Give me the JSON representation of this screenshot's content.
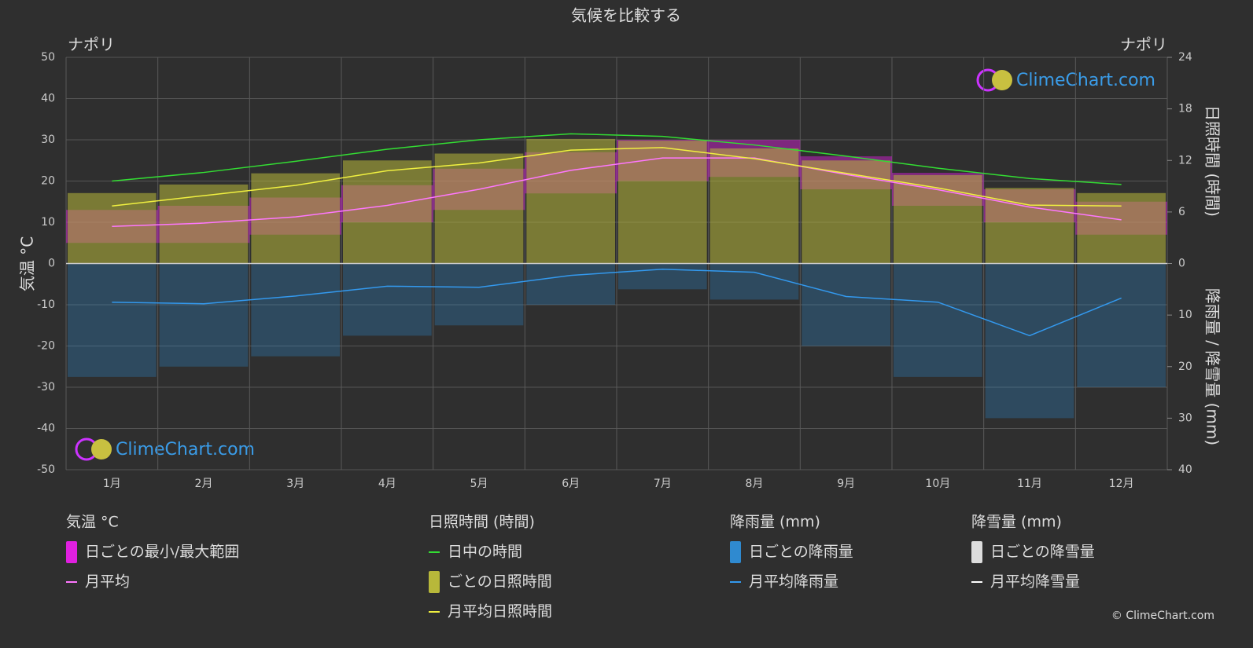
{
  "chart_data": {
    "type": "climate",
    "title": "気候を比較する",
    "locations": [
      "ナポリ",
      "ナポリ"
    ],
    "watermark": "ClimeChart.com",
    "copyright": "© ClimeChart.com",
    "ylabel": "気温 °C",
    "y2label": "日照時間 (時間)",
    "y3label": "降雨量 / 降雪量 (mm)",
    "categories": [
      "1月",
      "2月",
      "3月",
      "4月",
      "5月",
      "6月",
      "7月",
      "8月",
      "9月",
      "10月",
      "11月",
      "12月"
    ],
    "ylim": [
      -50,
      50
    ],
    "yticks": [
      -50,
      -40,
      -30,
      -20,
      -10,
      0,
      10,
      20,
      30,
      40,
      50
    ],
    "y2lim": [
      0,
      24
    ],
    "y2ticks": [
      0,
      6,
      12,
      18,
      24
    ],
    "y3lim": [
      0,
      40
    ],
    "y3ticks": [
      10,
      20,
      30,
      40
    ],
    "grid": true,
    "groups": [
      {
        "title": "気温 °C",
        "series": [
          {
            "name": "日ごとの最小/最大範囲",
            "kind": "range",
            "axis": "y",
            "color": "#e020e0",
            "low": [
              5,
              5,
              7,
              10,
              13,
              17,
              20,
              21,
              18,
              14,
              10,
              7
            ],
            "high": [
              13,
              14,
              16,
              19,
              23,
              27,
              30,
              30,
              26,
              22,
              18,
              15
            ]
          },
          {
            "name": "月平均",
            "kind": "line",
            "axis": "y",
            "color": "#ff77ff",
            "values": [
              9,
              9.8,
              11.3,
              14.1,
              18,
              22.6,
              25.6,
              25.6,
              21.6,
              17.9,
              13.7,
              10.6
            ]
          }
        ]
      },
      {
        "title": "日照時間 (時間)",
        "series": [
          {
            "name": "日中の時間",
            "kind": "line",
            "axis": "y2",
            "color": "#33dd33",
            "values": [
              9.6,
              10.6,
              11.9,
              13.3,
              14.4,
              15.1,
              14.8,
              13.8,
              12.5,
              11.1,
              9.9,
              9.2
            ]
          },
          {
            "name": "ごとの日照時間",
            "kind": "bar",
            "axis": "y2",
            "color": "#b8b83a",
            "values": [
              8.2,
              9.2,
              10.5,
              12,
              12.8,
              14.5,
              14.3,
              13.4,
              12,
              10.3,
              8.8,
              8.2
            ]
          },
          {
            "name": "月平均日照時間",
            "kind": "line",
            "axis": "y2",
            "color": "#f0f040",
            "values": [
              6.7,
              7.9,
              9.1,
              10.8,
              11.7,
              13.2,
              13.5,
              12.2,
              10.5,
              8.8,
              6.8,
              6.7
            ]
          }
        ]
      },
      {
        "title": "降雨量 (mm)",
        "series": [
          {
            "name": "日ごとの降雨量",
            "kind": "bar",
            "axis": "y3",
            "color": "#2f8ad0",
            "values": [
              22,
              20,
              18,
              14,
              12,
              8,
              5,
              7,
              16,
              22,
              30,
              24
            ]
          },
          {
            "name": "月平均降雨量",
            "kind": "line",
            "axis": "y3",
            "color": "#3399ee",
            "values": [
              7.5,
              7.8,
              6.3,
              4.4,
              4.6,
              2.3,
              1.1,
              1.7,
              6.4,
              7.5,
              14,
              6.7
            ]
          }
        ]
      },
      {
        "title": "降雪量 (mm)",
        "series": [
          {
            "name": "日ごとの降雪量",
            "kind": "bar",
            "axis": "y3",
            "color": "#dddddd"
          },
          {
            "name": "月平均降雪量",
            "kind": "line",
            "axis": "y3",
            "color": "#ffffff"
          }
        ]
      }
    ]
  }
}
